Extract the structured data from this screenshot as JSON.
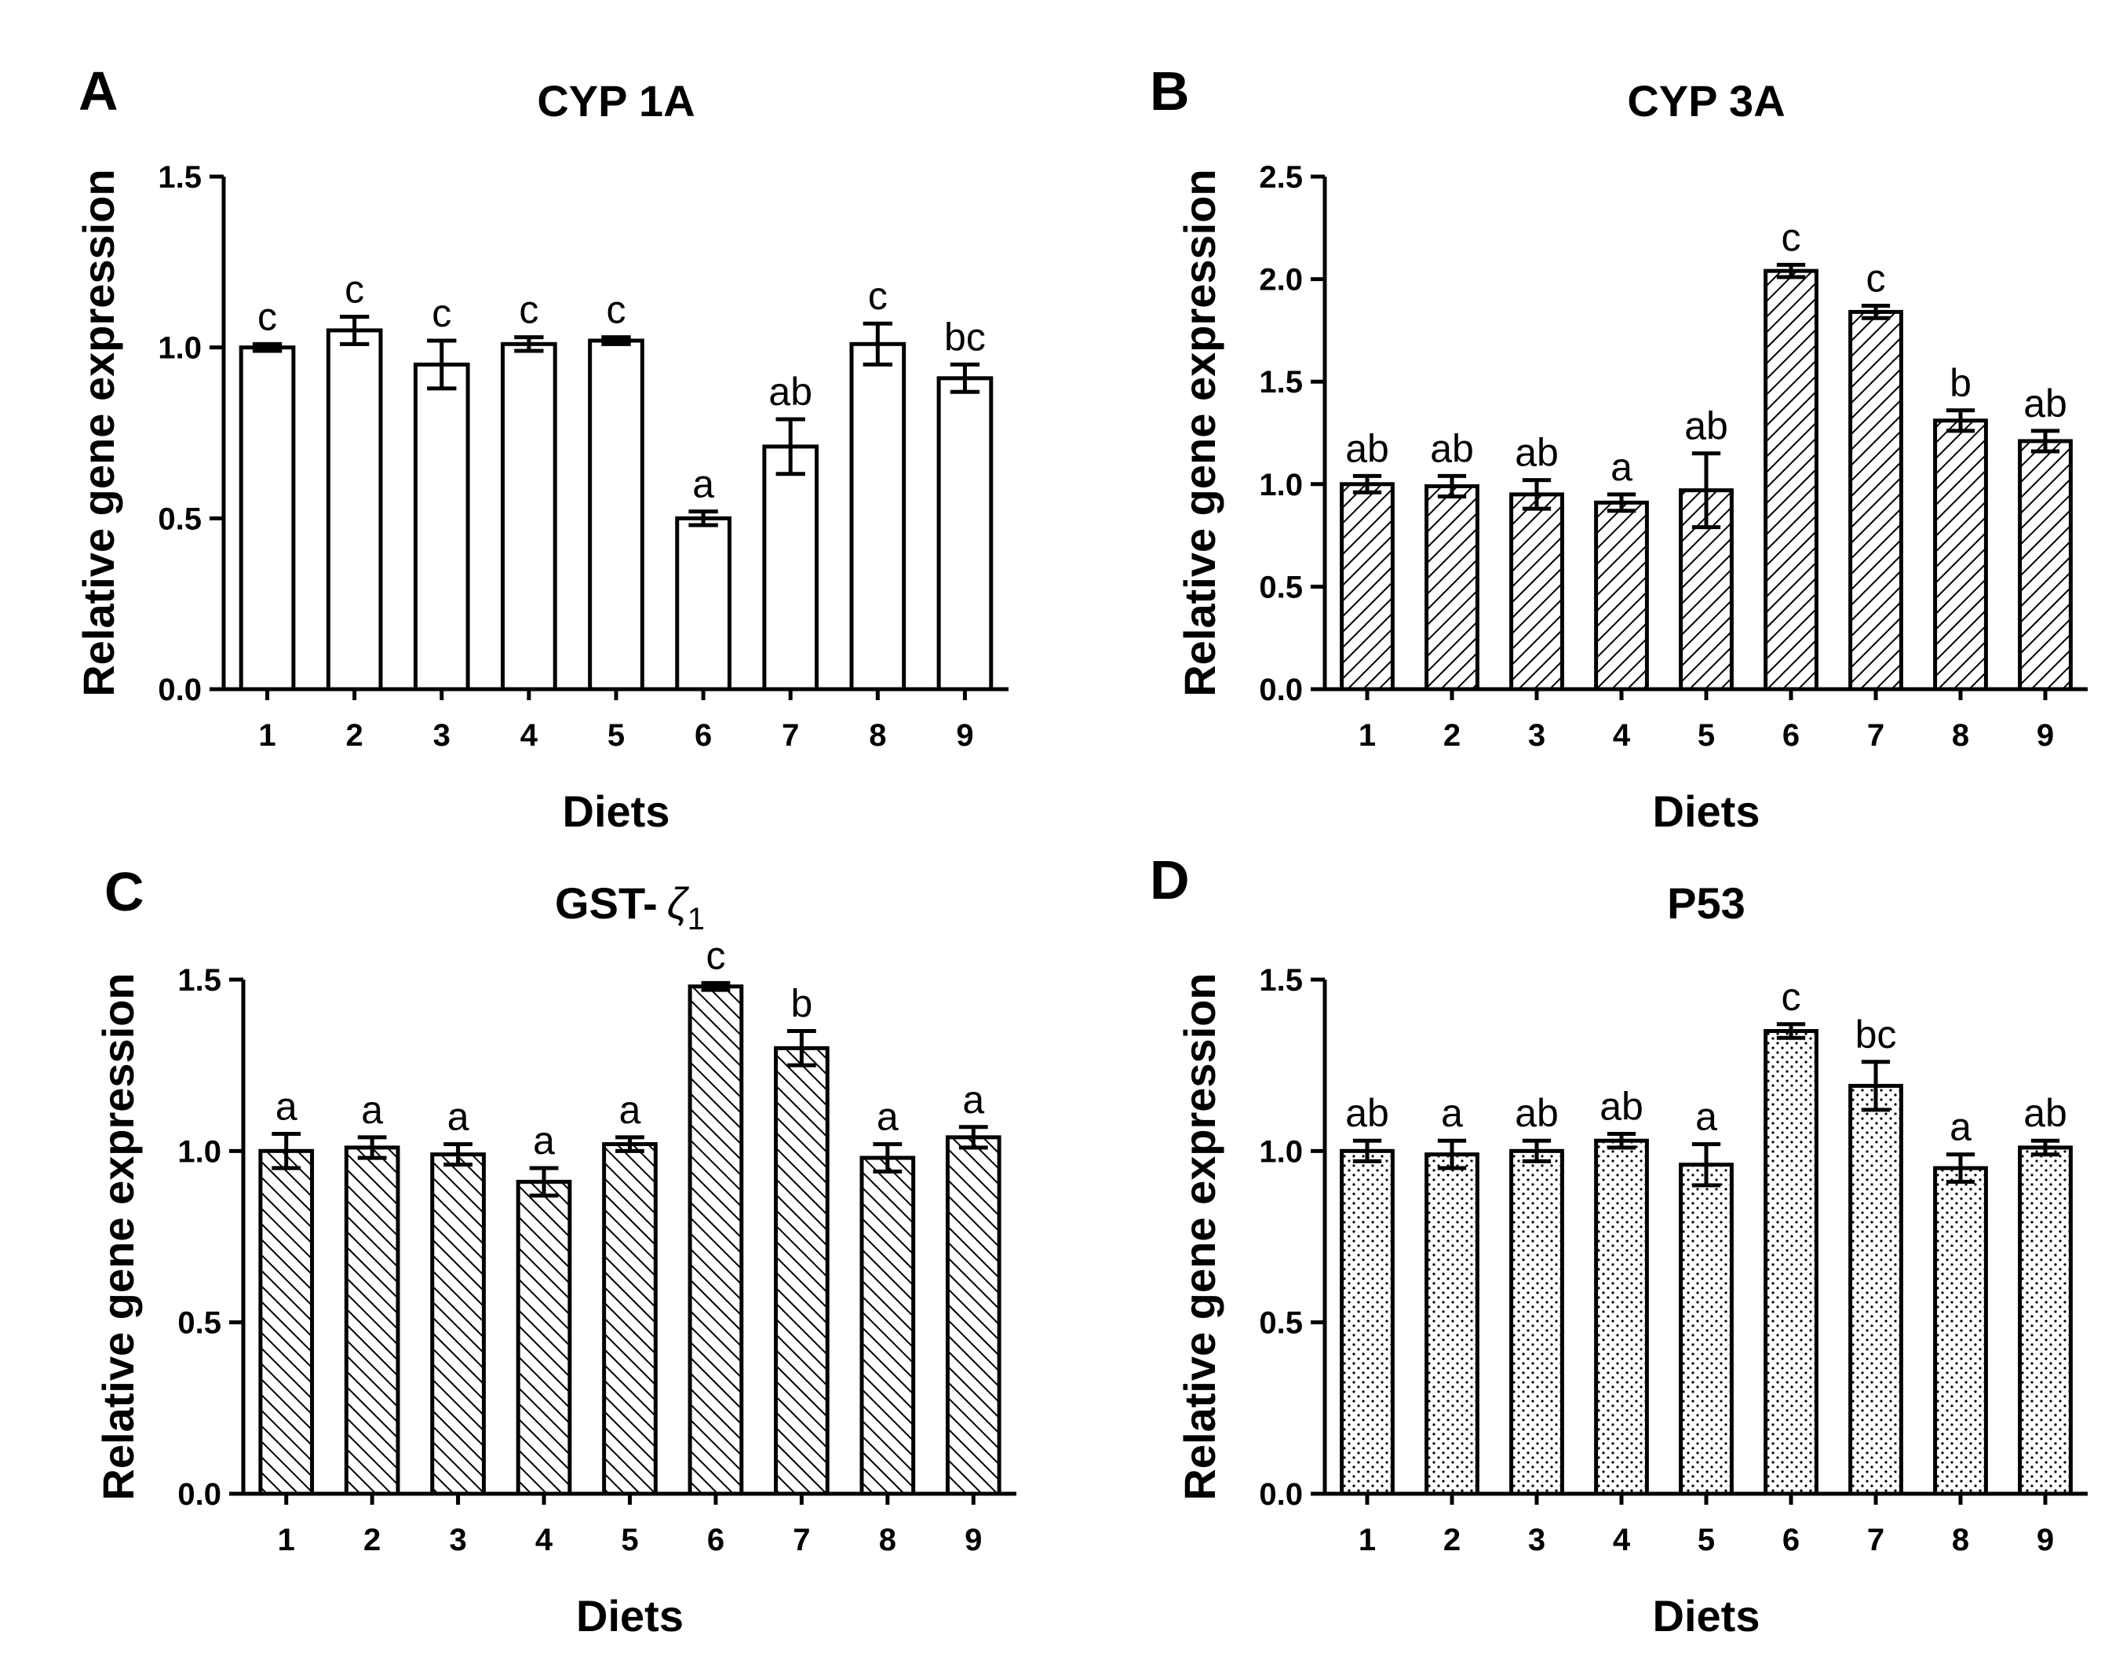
{
  "chart_data": [
    {
      "panel": "A",
      "type": "bar",
      "title": "CYP 1A",
      "xlabel": "Diets",
      "ylabel": "Relative gene expression",
      "pattern": "none",
      "categories": [
        "1",
        "2",
        "3",
        "4",
        "5",
        "6",
        "7",
        "8",
        "9"
      ],
      "values": [
        1.0,
        1.05,
        0.95,
        1.01,
        1.02,
        0.5,
        0.71,
        1.01,
        0.91
      ],
      "errors": [
        0.01,
        0.04,
        0.07,
        0.02,
        0.01,
        0.02,
        0.08,
        0.06,
        0.04
      ],
      "labels": [
        "c",
        "c",
        "c",
        "c",
        "c",
        "a",
        "ab",
        "c",
        "bc"
      ],
      "ylim": [
        0,
        1.5
      ],
      "yticks": [
        "0.0",
        "0.5",
        "1.0",
        "1.5"
      ]
    },
    {
      "panel": "B",
      "type": "bar",
      "title": "CYP 3A",
      "xlabel": "Diets",
      "ylabel": "Relative gene expression",
      "pattern": "diag-right",
      "categories": [
        "1",
        "2",
        "3",
        "4",
        "5",
        "6",
        "7",
        "8",
        "9"
      ],
      "values": [
        1.0,
        0.99,
        0.95,
        0.91,
        0.97,
        2.04,
        1.84,
        1.31,
        1.21
      ],
      "errors": [
        0.04,
        0.05,
        0.07,
        0.04,
        0.18,
        0.03,
        0.03,
        0.05,
        0.05
      ],
      "labels": [
        "ab",
        "ab",
        "ab",
        "a",
        "ab",
        "c",
        "c",
        "b",
        "ab"
      ],
      "ylim": [
        0,
        2.5
      ],
      "yticks": [
        "0.0",
        "0.5",
        "1.0",
        "1.5",
        "2.0",
        "2.5"
      ]
    },
    {
      "panel": "C",
      "type": "bar",
      "title": "GST-",
      "title_symbol": "ζ",
      "title_subscript": "1",
      "xlabel": "Diets",
      "ylabel": "Relative gene expression",
      "pattern": "diag-left",
      "categories": [
        "1",
        "2",
        "3",
        "4",
        "5",
        "6",
        "7",
        "8",
        "9"
      ],
      "values": [
        1.0,
        1.01,
        0.99,
        0.91,
        1.02,
        1.48,
        1.3,
        0.98,
        1.04
      ],
      "errors": [
        0.05,
        0.03,
        0.03,
        0.04,
        0.02,
        0.01,
        0.05,
        0.04,
        0.03
      ],
      "labels": [
        "a",
        "a",
        "a",
        "a",
        "a",
        "c",
        "b",
        "a",
        "a"
      ],
      "ylim": [
        0,
        1.5
      ],
      "yticks": [
        "0.0",
        "0.5",
        "1.0",
        "1.5"
      ]
    },
    {
      "panel": "D",
      "type": "bar",
      "title": "P53",
      "xlabel": "Diets",
      "ylabel": "Relative gene expression",
      "pattern": "dots",
      "categories": [
        "1",
        "2",
        "3",
        "4",
        "5",
        "6",
        "7",
        "8",
        "9"
      ],
      "values": [
        1.0,
        0.99,
        1.0,
        1.03,
        0.96,
        1.35,
        1.19,
        0.95,
        1.01
      ],
      "errors": [
        0.03,
        0.04,
        0.03,
        0.02,
        0.06,
        0.02,
        0.07,
        0.04,
        0.02
      ],
      "labels": [
        "ab",
        "a",
        "ab",
        "ab",
        "a",
        "c",
        "bc",
        "a",
        "ab"
      ],
      "ylim": [
        0,
        1.5
      ],
      "yticks": [
        "0.0",
        "0.5",
        "1.0",
        "1.5"
      ]
    }
  ]
}
